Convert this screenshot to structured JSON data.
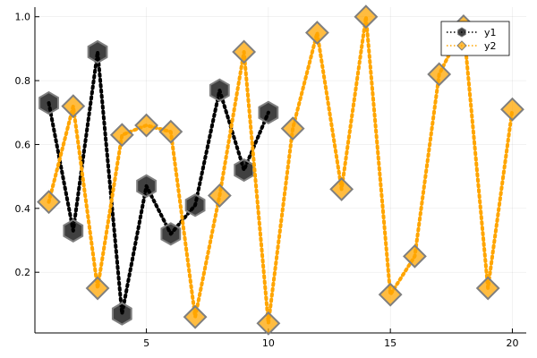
{
  "chart_data": {
    "type": "line",
    "title": "",
    "xlabel": "",
    "ylabel": "",
    "xlim": [
      0.43,
      20.57
    ],
    "ylim": [
      0.01,
      1.03
    ],
    "x_ticks": [
      5,
      10,
      15,
      20
    ],
    "y_ticks": [
      0.2,
      0.4,
      0.6,
      0.8,
      1.0
    ],
    "x_tick_labels": [
      "5",
      "10",
      "15",
      "20"
    ],
    "y_tick_labels": [
      "0.2",
      "0.4",
      "0.6",
      "0.8",
      "1.0"
    ],
    "grid": true,
    "legend_position": "top-right",
    "series": [
      {
        "name": "y1",
        "color": "#000000",
        "line_style": "dotted",
        "marker": "hexagon",
        "x": [
          1,
          2,
          3,
          4,
          5,
          6,
          7,
          8,
          9,
          10
        ],
        "values": [
          0.73,
          0.33,
          0.89,
          0.07,
          0.47,
          0.32,
          0.41,
          0.77,
          0.52,
          0.7
        ]
      },
      {
        "name": "y2",
        "color": "#FFA500",
        "line_style": "dotted",
        "marker": "diamond",
        "x": [
          1,
          2,
          3,
          4,
          5,
          6,
          7,
          8,
          9,
          10,
          11,
          12,
          13,
          14,
          15,
          16,
          17,
          18,
          19,
          20
        ],
        "values": [
          0.42,
          0.72,
          0.15,
          0.63,
          0.66,
          0.64,
          0.06,
          0.44,
          0.89,
          0.04,
          0.65,
          0.95,
          0.46,
          1.0,
          0.13,
          0.25,
          0.82,
          0.97,
          0.15,
          0.71
        ]
      }
    ]
  }
}
